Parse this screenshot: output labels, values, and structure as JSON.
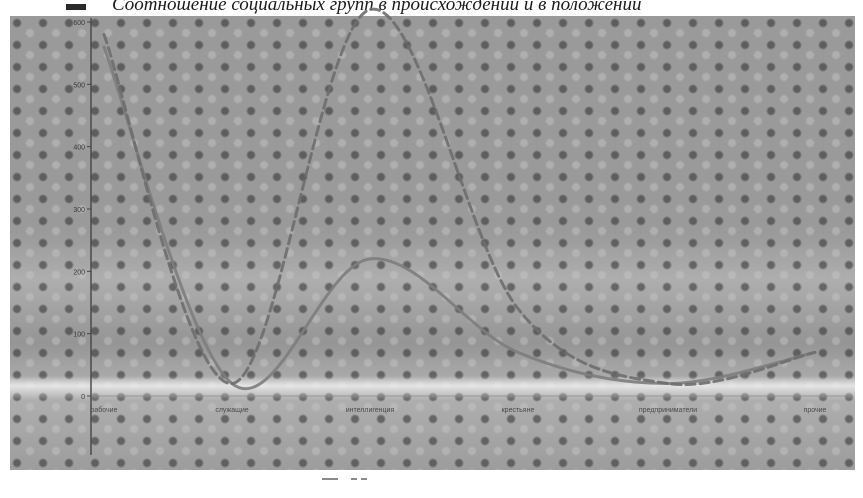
{
  "chart_data": {
    "type": "line",
    "title": "Соотношение социальных групп в происхождении и в положении",
    "categories": [
      "рабочие",
      "служащие",
      "интеллигенция",
      "крестьяне",
      "предприниматели",
      "прочие"
    ],
    "yticks": [
      "0",
      "100",
      "200",
      "300",
      "400",
      "500",
      "600"
    ],
    "ylim": [
      0,
      600
    ],
    "grid": false,
    "legend_position": "bottom",
    "series": [
      {
        "name": "",
        "style": "solid",
        "values": [
          560,
          20,
          220,
          70,
          20,
          70
        ]
      },
      {
        "name": "",
        "style": "dashed",
        "values": [
          580,
          20,
          620,
          140,
          20,
          70
        ]
      }
    ],
    "colors": {
      "solid": "#7d7d7d",
      "dashed": "#6e6e6e",
      "background": "#8f8f8f"
    }
  }
}
